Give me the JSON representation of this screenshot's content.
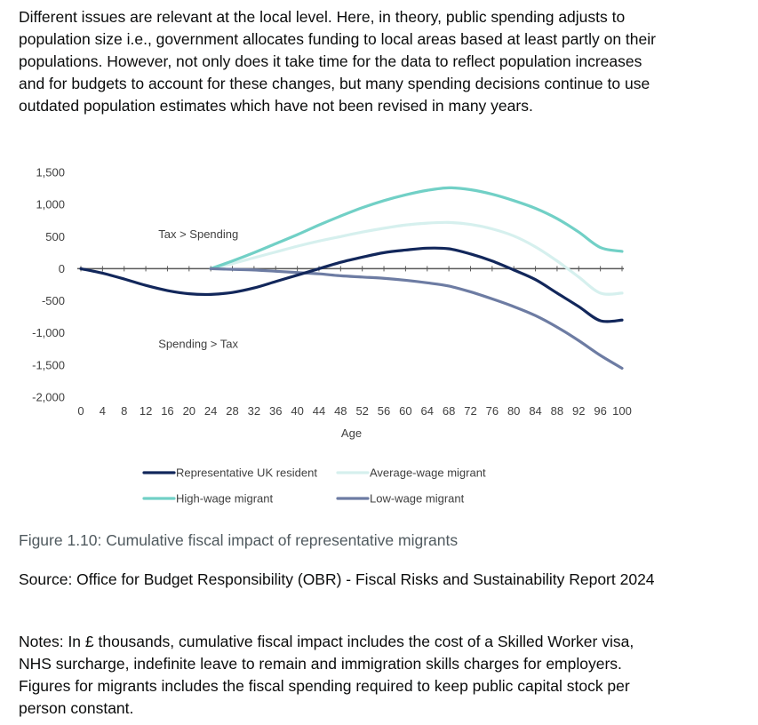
{
  "intro_text": "Different issues are relevant at the local level. Here, in theory, public spending adjusts to population size i.e., government allocates funding to local areas based at least partly on their populations. However, not only does it take time for the data to reflect population increases and for budgets to account for these changes, but many spending decisions continue to use outdated population estimates which have not been revised in many years.",
  "figure_caption": "Figure 1.10: Cumulative fiscal impact of representative migrants",
  "source_text": "Source: Office for Budget Responsibility (OBR) - Fiscal Risks and Sustainability Report 2024",
  "notes_text": "Notes: In £ thousands, cumulative fiscal impact includes the cost of a Skilled Worker visa, NHS surcharge, indefinite leave to remain and immigration skills charges for employers. Figures for migrants includes the fiscal spending required to keep public capital stock per person constant.",
  "chart_data": {
    "type": "line",
    "title": "",
    "xlabel": "Age",
    "ylabel": "",
    "xlim": [
      0,
      100
    ],
    "ylim": [
      -2000,
      1500
    ],
    "x_ticks": [
      0,
      4,
      8,
      12,
      16,
      20,
      24,
      28,
      32,
      36,
      40,
      44,
      48,
      52,
      56,
      60,
      64,
      68,
      72,
      76,
      80,
      84,
      88,
      92,
      96,
      100
    ],
    "y_ticks": [
      1500,
      1000,
      500,
      0,
      -500,
      -1000,
      -1500,
      -2000
    ],
    "y_tick_labels": [
      "1,500",
      "1,000",
      "500",
      "0",
      "-500",
      "-1,000",
      "-1,500",
      "-2,000"
    ],
    "grid": false,
    "legend_position": "bottom",
    "annotations": [
      {
        "text": "Tax > Spending",
        "x": 14,
        "y": 530
      },
      {
        "text": "Spending > Tax",
        "x": 14,
        "y": -1180
      }
    ],
    "x": [
      0,
      4,
      8,
      12,
      16,
      20,
      24,
      28,
      32,
      36,
      40,
      44,
      48,
      52,
      56,
      60,
      64,
      68,
      72,
      76,
      80,
      84,
      88,
      92,
      96,
      100
    ],
    "series": [
      {
        "name": "Representative UK resident",
        "color": "#12275b",
        "values": [
          0,
          -70,
          -160,
          -260,
          -340,
          -390,
          -400,
          -370,
          -300,
          -200,
          -100,
          0,
          100,
          180,
          250,
          290,
          320,
          310,
          230,
          120,
          -20,
          -170,
          -380,
          -590,
          -810,
          -800
        ]
      },
      {
        "name": "Average-wage migrant",
        "color": "#d6f0ee",
        "values": [
          null,
          null,
          null,
          null,
          null,
          null,
          0,
          80,
          170,
          260,
          350,
          430,
          500,
          570,
          630,
          680,
          710,
          720,
          690,
          620,
          510,
          340,
          120,
          -130,
          -380,
          -380
        ]
      },
      {
        "name": "High-wage migrant",
        "color": "#71d0c6",
        "values": [
          null,
          null,
          null,
          null,
          null,
          null,
          0,
          120,
          250,
          390,
          530,
          680,
          820,
          950,
          1060,
          1150,
          1220,
          1260,
          1230,
          1160,
          1060,
          940,
          780,
          570,
          330,
          270
        ]
      },
      {
        "name": "Low-wage migrant",
        "color": "#6d7ca3",
        "values": [
          null,
          null,
          null,
          null,
          null,
          null,
          0,
          -10,
          -20,
          -40,
          -60,
          -80,
          -110,
          -130,
          -150,
          -180,
          -220,
          -270,
          -360,
          -470,
          -590,
          -730,
          -910,
          -1120,
          -1350,
          -1550
        ]
      }
    ]
  }
}
